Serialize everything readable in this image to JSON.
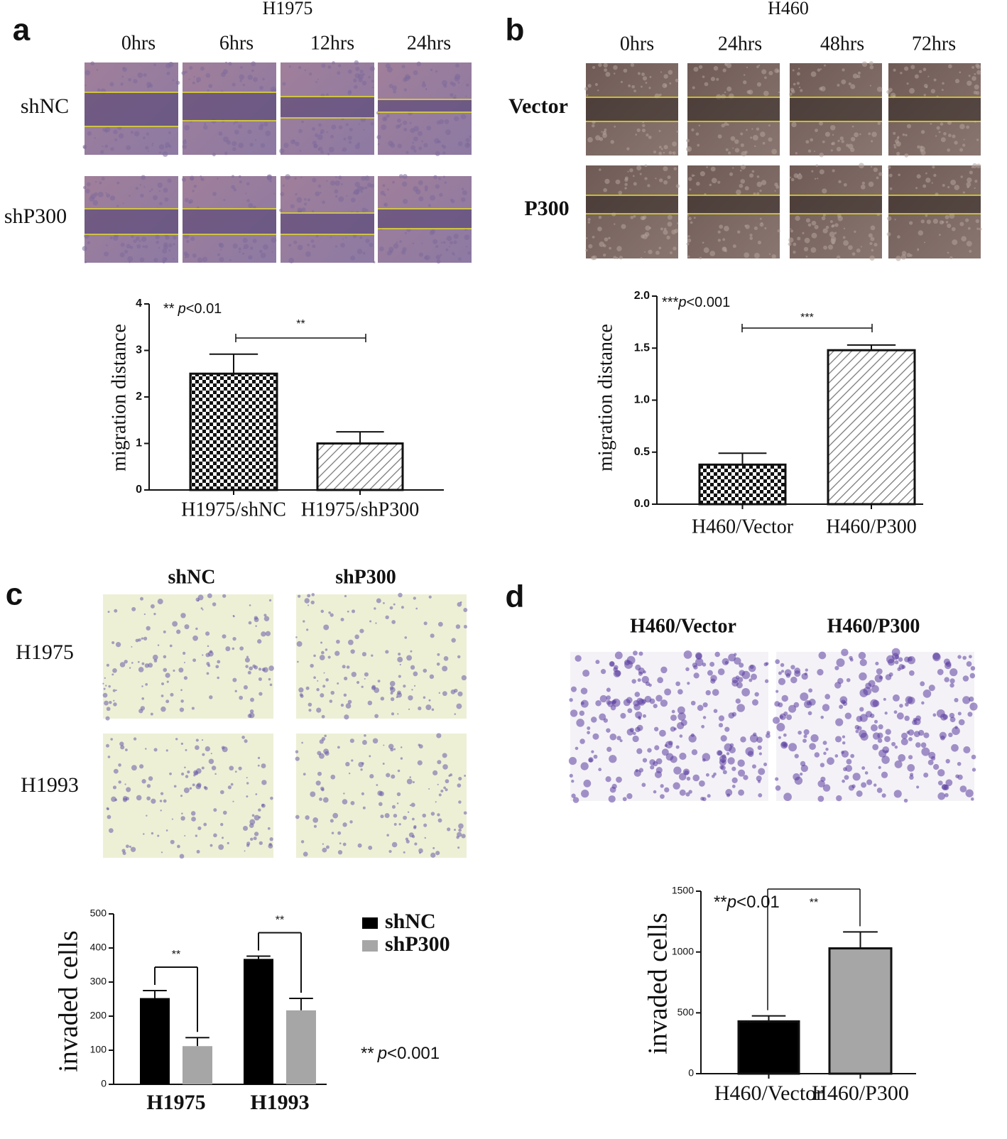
{
  "panels": [
    {
      "label": "a",
      "cell_line": "H1975",
      "timepoints": [
        "0hrs",
        "6hrs",
        "12hrs",
        "24hrs"
      ],
      "rows": [
        "shNC",
        "shP300"
      ]
    },
    {
      "label": "b",
      "cell_line": "H460",
      "timepoints": [
        "0hrs",
        "24hrs",
        "48hrs",
        "72hrs"
      ],
      "rows": [
        "Vector",
        "P300"
      ]
    },
    {
      "label": "c",
      "columns": [
        "shNC",
        "shP300"
      ],
      "rows": [
        "H1975",
        "H1993"
      ]
    },
    {
      "label": "d",
      "columns": [
        "H460/Vector",
        "H460/P300"
      ]
    }
  ],
  "chart_data": [
    {
      "type": "bar",
      "y_label": "migration distance",
      "categories": [
        "H1975/shNC",
        "H1975/shP300"
      ],
      "values": [
        2.5,
        1.0
      ],
      "errors": [
        0.42,
        0.25
      ],
      "patterns": [
        "checker",
        "hatch"
      ],
      "ylim": [
        0,
        4
      ],
      "yticks": [
        0,
        1,
        2,
        3,
        4
      ],
      "annotation": {
        "stars": "**",
        "p": "p",
        "threshold": "<0.01"
      },
      "significance": "**"
    },
    {
      "type": "bar",
      "y_label": "migration distance",
      "categories": [
        "H460/Vector",
        "H460/P300"
      ],
      "values": [
        0.38,
        1.48
      ],
      "errors": [
        0.11,
        0.05
      ],
      "patterns": [
        "checker",
        "hatch"
      ],
      "ylim": [
        0,
        2.0
      ],
      "yticks": [
        {
          "value": 0,
          "label": "0.0"
        },
        {
          "value": 0.5,
          "label": "0.5"
        },
        {
          "value": 1,
          "label": "1.0"
        },
        {
          "value": 1.5,
          "label": "1.5"
        },
        {
          "value": 2,
          "label": "2.0"
        }
      ],
      "annotation": {
        "stars": "***",
        "p": "p",
        "threshold": "<0.001"
      },
      "significance": "***"
    },
    {
      "type": "grouped_bar",
      "y_label": "invaded cells",
      "categories": [
        "H1975",
        "H1993"
      ],
      "series": [
        {
          "name": "shNC",
          "color": "#000000",
          "values": [
            253,
            368
          ],
          "errors": [
            22,
            8
          ]
        },
        {
          "name": "shP300",
          "color": "#a6a6a6",
          "values": [
            112,
            217
          ],
          "errors": [
            25,
            35
          ]
        }
      ],
      "ylim": [
        0,
        500
      ],
      "yticks": [
        0,
        100,
        200,
        300,
        400,
        500
      ],
      "annotation": {
        "stars": "**",
        "p": "p",
        "threshold": "<0.001"
      },
      "significance": [
        "**",
        "**"
      ],
      "legend": "upper right"
    },
    {
      "type": "bar",
      "y_label": "invaded cells",
      "categories": [
        "H460/Vector",
        "H460/P300"
      ],
      "values": [
        430,
        1030
      ],
      "errors": [
        45,
        135
      ],
      "colors": [
        "#000000",
        "#a6a6a6"
      ],
      "ylim": [
        0,
        1500
      ],
      "yticks": [
        0,
        500,
        1000,
        1500
      ],
      "annotation": {
        "stars": "**",
        "p": "p",
        "threshold": "<0.01"
      },
      "significance": "**"
    }
  ]
}
